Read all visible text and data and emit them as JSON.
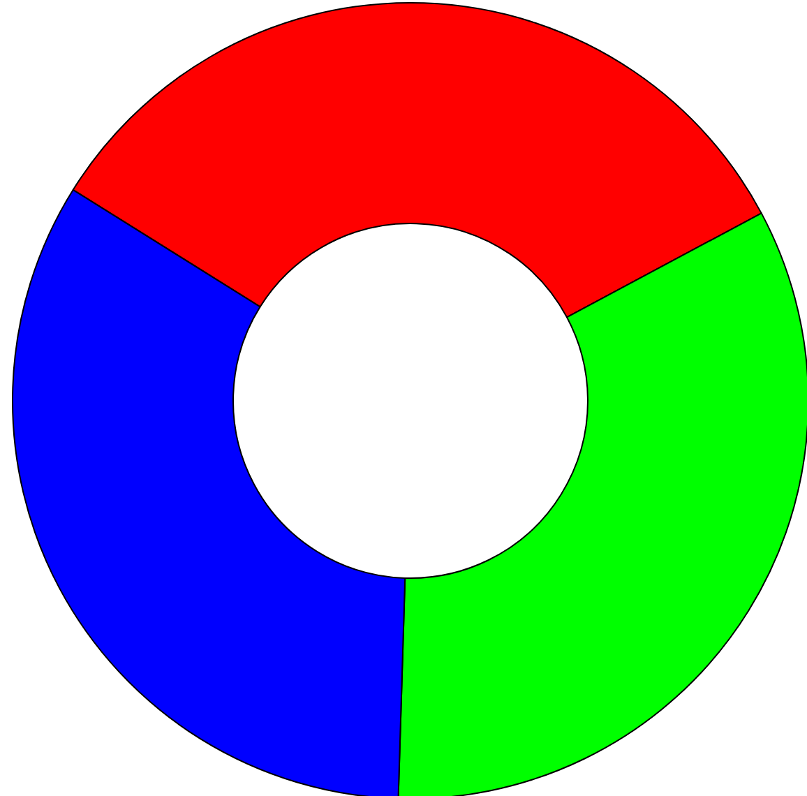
{
  "chart_data": {
    "type": "donut",
    "categories": [
      null,
      null,
      null
    ],
    "values": [
      33.3,
      33.3,
      33.4
    ],
    "colors": [
      "#ff0000",
      "#00ff00",
      "#0000ff"
    ]
  }
}
